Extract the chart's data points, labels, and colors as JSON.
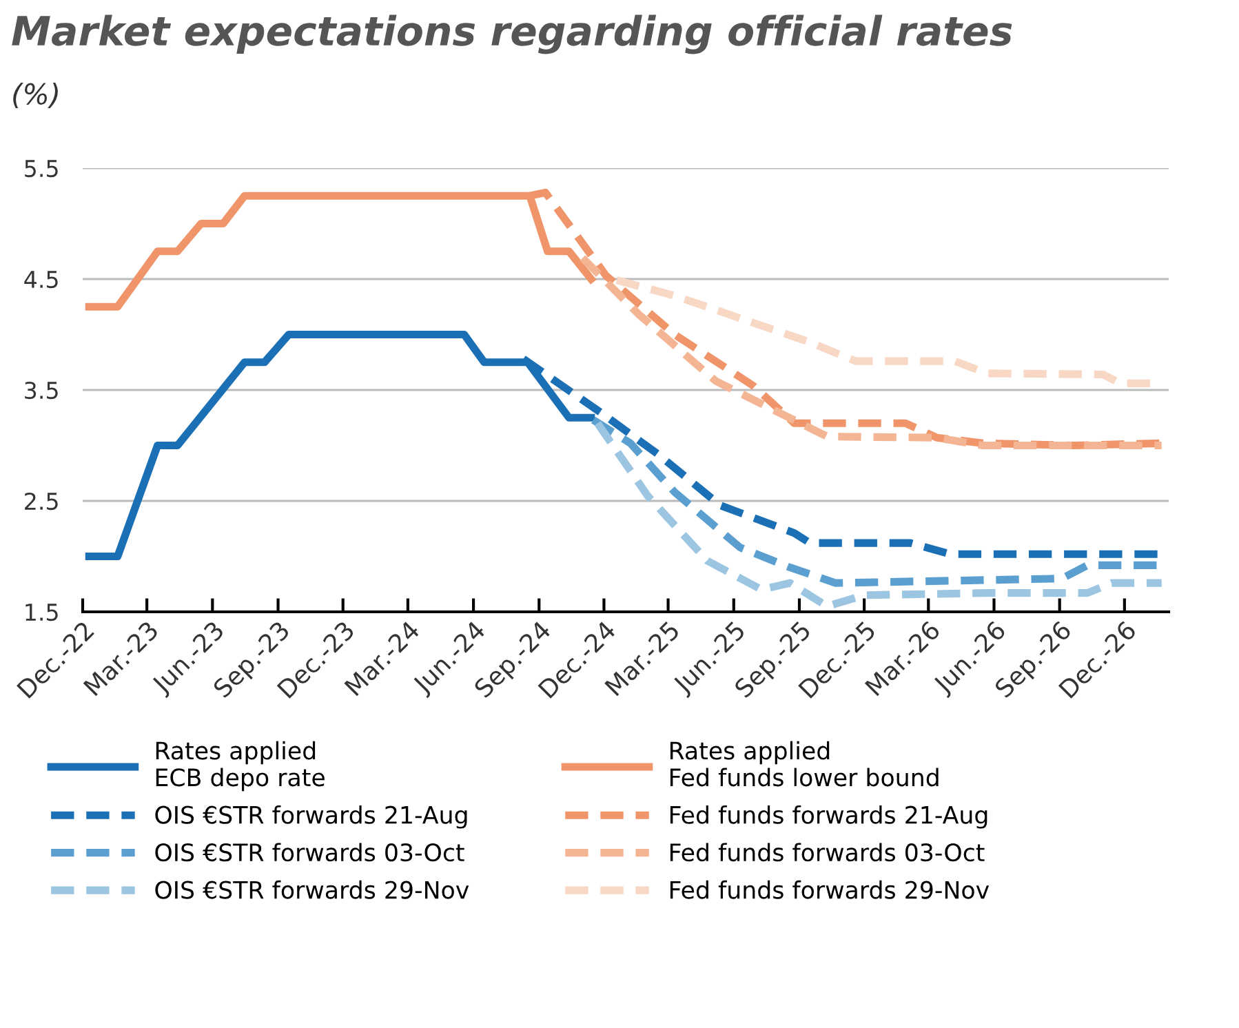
{
  "chart_data": {
    "type": "line",
    "title": "Market expectations regarding official rates",
    "subtitle": "(%)",
    "xlim": [
      "2022-12-01",
      "2027-02-01"
    ],
    "xticks": [
      {
        "value": "2022-12-01",
        "label": "Dec.-22"
      },
      {
        "value": "2023-03-01",
        "label": "Mar.-23"
      },
      {
        "value": "2023-06-01",
        "label": "Jun.-23"
      },
      {
        "value": "2023-09-01",
        "label": "Sep.-23"
      },
      {
        "value": "2023-12-01",
        "label": "Dec.-23"
      },
      {
        "value": "2024-03-01",
        "label": "Mar.-24"
      },
      {
        "value": "2024-06-01",
        "label": "Jun.-24"
      },
      {
        "value": "2024-09-01",
        "label": "Sep.-24"
      },
      {
        "value": "2024-12-01",
        "label": "Dec.-24"
      },
      {
        "value": "2025-03-01",
        "label": "Mar.-25"
      },
      {
        "value": "2025-06-01",
        "label": "Jun.-25"
      },
      {
        "value": "2025-09-01",
        "label": "Sep.-25"
      },
      {
        "value": "2025-12-01",
        "label": "Dec.-25"
      },
      {
        "value": "2026-03-01",
        "label": "Mar.-26"
      },
      {
        "value": "2026-06-01",
        "label": "Jun.-26"
      },
      {
        "value": "2026-09-01",
        "label": "Sep.-26"
      },
      {
        "value": "2026-12-01",
        "label": "Dec.-26"
      }
    ],
    "ylim": [
      1.5,
      5.5
    ],
    "yticks": [
      1.5,
      2.5,
      3.5,
      4.5,
      5.5
    ],
    "grid": "y",
    "legend": "bottom",
    "series": [
      {
        "name": "Rates applied\nECB depo rate",
        "color": "#1a6fb5",
        "line_style": "solid",
        "x": [
          "2022-12-10",
          "2023-01-19",
          "2023-03-16",
          "2023-04-13",
          "2023-07-16",
          "2023-08-13",
          "2023-09-16",
          "2024-05-19",
          "2024-06-16",
          "2024-08-16",
          "2024-10-13",
          "2024-11-13"
        ],
        "values": [
          2.0,
          2.0,
          3.0,
          3.0,
          3.75,
          3.75,
          4.0,
          4.0,
          3.75,
          3.75,
          3.25,
          3.25
        ]
      },
      {
        "name": "OIS €STR forwards 21-Aug",
        "color": "#1a6fb5",
        "line_style": "dashed",
        "x": [
          "2024-08-10",
          "2024-11-28",
          "2025-02-15",
          "2025-05-13",
          "2025-08-25",
          "2025-09-16",
          "2026-02-04",
          "2026-04-01",
          "2027-01-22"
        ],
        "values": [
          3.78,
          3.29,
          2.92,
          2.46,
          2.21,
          2.12,
          2.12,
          2.02,
          2.02
        ]
      },
      {
        "name": "OIS €STR forwards 03-Oct",
        "color": "#5b9fd0",
        "line_style": "dashed",
        "x": [
          "2024-11-16",
          "2025-01-07",
          "2025-03-10",
          "2025-06-10",
          "2025-08-19",
          "2025-10-22",
          "2026-09-04",
          "2026-10-10",
          "2027-01-22"
        ],
        "values": [
          3.23,
          3.02,
          2.58,
          2.08,
          1.9,
          1.76,
          1.8,
          1.92,
          1.92
        ]
      },
      {
        "name": "OIS €STR forwards 29-Nov",
        "color": "#9cc5e2",
        "line_style": "dashed",
        "x": [
          "2024-11-22",
          "2025-02-01",
          "2025-04-25",
          "2025-07-10",
          "2025-08-19",
          "2025-10-10",
          "2025-12-01",
          "2026-05-22",
          "2026-10-10",
          "2026-11-13",
          "2027-01-22"
        ],
        "values": [
          3.2,
          2.54,
          1.96,
          1.7,
          1.76,
          1.55,
          1.65,
          1.67,
          1.67,
          1.76,
          1.76
        ]
      },
      {
        "name": "Rates applied\nFed funds lower bound",
        "color": "#f0956a",
        "line_style": "solid",
        "x": [
          "2022-12-10",
          "2023-01-19",
          "2023-03-16",
          "2023-04-13",
          "2023-05-16",
          "2023-06-16",
          "2023-07-16",
          "2024-08-19",
          "2024-09-13",
          "2024-10-13",
          "2024-11-13"
        ],
        "values": [
          4.25,
          4.25,
          4.75,
          4.75,
          5.0,
          5.0,
          5.25,
          5.25,
          4.75,
          4.75,
          4.5
        ]
      },
      {
        "name": "Fed funds forwards 21-Aug",
        "color": "#f0956a",
        "line_style": "dashed",
        "x": [
          "2024-08-19",
          "2024-09-10",
          "2024-12-04",
          "2025-03-10",
          "2025-06-28",
          "2025-08-25",
          "2026-01-28",
          "2026-03-13",
          "2026-05-16",
          "2026-09-22",
          "2027-01-22"
        ],
        "values": [
          5.25,
          5.28,
          4.53,
          4.0,
          3.54,
          3.2,
          3.2,
          3.07,
          3.02,
          3.0,
          3.02
        ]
      },
      {
        "name": "Fed funds forwards 03-Oct",
        "color": "#f4b594",
        "line_style": "dashed",
        "x": [
          "2024-11-01",
          "2025-01-19",
          "2025-05-07",
          "2025-10-10",
          "2026-03-13",
          "2026-05-16",
          "2027-01-22"
        ],
        "values": [
          4.69,
          4.18,
          3.58,
          3.08,
          3.07,
          3.0,
          3.0
        ]
      },
      {
        "name": "Fed funds forwards 29-Nov",
        "color": "#f8d7c5",
        "line_style": "dashed",
        "x": [
          "2024-12-19",
          "2025-03-10",
          "2025-09-16",
          "2025-11-19",
          "2026-04-07",
          "2026-05-22",
          "2026-11-01",
          "2026-11-25",
          "2027-01-22"
        ],
        "values": [
          4.49,
          4.35,
          3.93,
          3.76,
          3.76,
          3.65,
          3.64,
          3.56,
          3.56
        ]
      }
    ]
  }
}
